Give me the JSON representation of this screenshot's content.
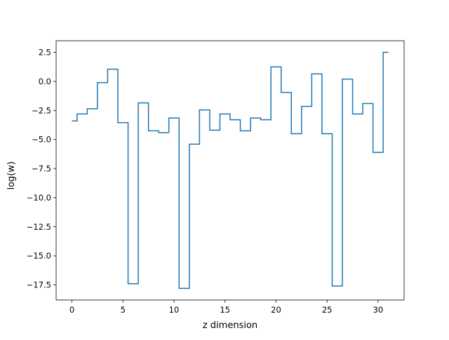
{
  "chart_data": {
    "type": "line",
    "drawstyle": "steps-mid",
    "title": "",
    "xlabel": "z dimension",
    "ylabel": "log(w)",
    "xlim": [
      -1.55,
      32.55
    ],
    "ylim": [
      -18.8,
      3.5
    ],
    "xticks": [
      0,
      5,
      10,
      15,
      20,
      25,
      30
    ],
    "yticks": [
      2.5,
      0.0,
      -2.5,
      -5.0,
      -7.5,
      -10.0,
      -12.5,
      -15.0,
      -17.5
    ],
    "xtick_labels": [
      "0",
      "5",
      "10",
      "15",
      "20",
      "25",
      "30"
    ],
    "ytick_labels": [
      "2.5",
      "0.0",
      "−2.5",
      "−5.0",
      "−7.5",
      "−10.0",
      "−12.5",
      "−15.0",
      "−17.5"
    ],
    "grid": false,
    "legend": "none",
    "series": [
      {
        "color": "#1f77b4",
        "x": [
          0,
          1,
          2,
          3,
          4,
          5,
          6,
          7,
          8,
          9,
          10,
          11,
          12,
          13,
          14,
          15,
          16,
          17,
          18,
          19,
          20,
          21,
          22,
          23,
          24,
          25,
          26,
          27,
          28,
          29,
          30,
          31
        ],
        "y": [
          -3.4,
          -2.8,
          -2.35,
          -0.1,
          1.05,
          -3.55,
          -17.4,
          -1.85,
          -4.25,
          -4.4,
          -3.15,
          -17.8,
          -5.4,
          -2.45,
          -4.2,
          -2.8,
          -3.3,
          -4.25,
          -3.15,
          -3.3,
          1.25,
          -0.95,
          -4.5,
          -2.15,
          0.65,
          -4.5,
          -17.6,
          0.2,
          -2.8,
          -1.9,
          -6.1,
          2.5
        ]
      }
    ]
  }
}
